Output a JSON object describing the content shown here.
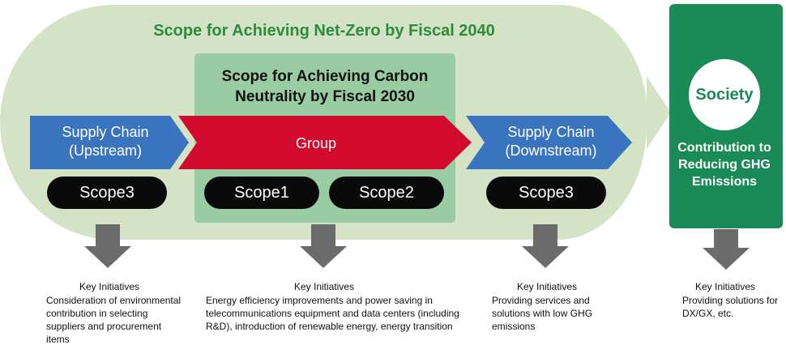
{
  "titles": {
    "net_zero": "Scope for Achieving Net-Zero by Fiscal 2040",
    "carbon_neutral": "Scope for Achieving Carbon Neutrality by Fiscal 2030"
  },
  "chain": {
    "upstream": "Supply Chain (Upstream)",
    "group": "Group",
    "downstream": "Supply Chain (Downstream)"
  },
  "scopes": {
    "upstream": "Scope3",
    "scope1": "Scope1",
    "scope2": "Scope2",
    "downstream": "Scope3"
  },
  "society": {
    "name": "Society",
    "description": "Contribution to Reducing GHG Emissions"
  },
  "initiatives": {
    "heading": "Key Initiatives",
    "upstream": "Consideration of environmental contribution in selecting suppliers and procurement items",
    "group": "Energy efficiency improvements and power saving in telecommunications equipment and data centers (including R&D), introduction of renewable energy, energy transition",
    "downstream": "Providing services and solutions with low GHG emissions",
    "society": "Providing solutions for DX/GX, etc."
  },
  "colors": {
    "net_zero_area": "#d4e3c6",
    "carbon_neutral_area": "#99cca3",
    "supply_chain_arrow": "#3a74be",
    "group_arrow": "#d20a2e",
    "scope_pill": "#0a0a0a",
    "society_box": "#1a8a57",
    "down_arrow": "#6b6b6b",
    "net_zero_title": "#2e8b3e"
  }
}
